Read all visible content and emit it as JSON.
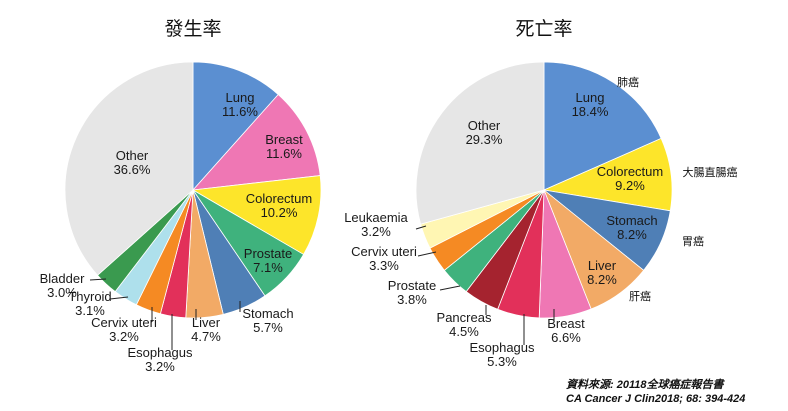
{
  "chart_data": [
    {
      "type": "pie",
      "title": "發生率",
      "slices": [
        {
          "label": "Lung",
          "value": 11.6,
          "value_label": "11.6%",
          "color": "#5b8fd1"
        },
        {
          "label": "Breast",
          "value": 11.6,
          "value_label": "11.6%",
          "color": "#ef77b4"
        },
        {
          "label": "Colorectum",
          "value": 10.2,
          "value_label": "10.2%",
          "color": "#fde52a"
        },
        {
          "label": "Prostate",
          "value": 7.1,
          "value_label": "7.1%",
          "color": "#3fb27d"
        },
        {
          "label": "Stomach",
          "value": 5.7,
          "value_label": "5.7%",
          "color": "#4f7fb6"
        },
        {
          "label": "Liver",
          "value": 4.7,
          "value_label": "4.7%",
          "color": "#f2aa66"
        },
        {
          "label": "Esophagus",
          "value": 3.2,
          "value_label": "3.2%",
          "color": "#e2305a"
        },
        {
          "label": "Cervix uteri",
          "value": 3.2,
          "value_label": "3.2%",
          "color": "#f58a23"
        },
        {
          "label": "Thyroid",
          "value": 3.1,
          "value_label": "3.1%",
          "color": "#aee0ec"
        },
        {
          "label": "Bladder",
          "value": 3.0,
          "value_label": "3.0%",
          "color": "#3a9a4f"
        },
        {
          "label": "Other",
          "value": 36.6,
          "value_label": "36.6%",
          "color": "#e6e6e6"
        }
      ]
    },
    {
      "type": "pie",
      "title": "死亡率",
      "slices": [
        {
          "label": "Lung",
          "value": 18.4,
          "value_label": "18.4%",
          "color": "#5b8fd1",
          "annotation": "肺癌"
        },
        {
          "label": "Colorectum",
          "value": 9.2,
          "value_label": "9.2%",
          "color": "#fde52a",
          "annotation": "大腸直腸癌"
        },
        {
          "label": "Stomach",
          "value": 8.2,
          "value_label": "8.2%",
          "color": "#4f7fb6",
          "annotation": "胃癌"
        },
        {
          "label": "Liver",
          "value": 8.2,
          "value_label": "8.2%",
          "color": "#f2aa66",
          "annotation": "肝癌"
        },
        {
          "label": "Breast",
          "value": 6.6,
          "value_label": "6.6%",
          "color": "#ef77b4"
        },
        {
          "label": "Esophagus",
          "value": 5.3,
          "value_label": "5.3%",
          "color": "#e2305a"
        },
        {
          "label": "Pancreas",
          "value": 4.5,
          "value_label": "4.5%",
          "color": "#a5232f"
        },
        {
          "label": "Prostate",
          "value": 3.8,
          "value_label": "3.8%",
          "color": "#3fb27d"
        },
        {
          "label": "Cervix uteri",
          "value": 3.3,
          "value_label": "3.3%",
          "color": "#f58a23"
        },
        {
          "label": "Leukaemia",
          "value": 3.2,
          "value_label": "3.2%",
          "color": "#fff6b3"
        },
        {
          "label": "Other",
          "value": 29.3,
          "value_label": "29.3%",
          "color": "#e6e6e6"
        }
      ]
    }
  ],
  "source": {
    "line1": "資料來源: 20118全球癌症報告書",
    "line2": "CA Cancer J Clin2018; 68: 394-424"
  }
}
